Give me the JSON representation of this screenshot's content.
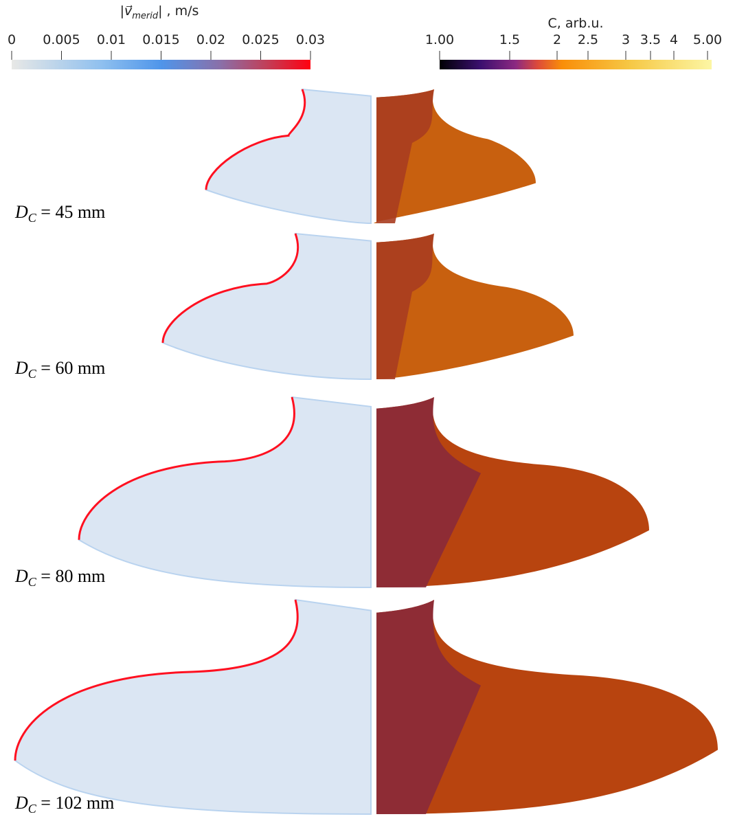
{
  "colorbars": [
    {
      "title": {
        "open": "|",
        "symbol": "v⃗",
        "subscript": "merid",
        "close": "| , m/s"
      },
      "ticks": [
        "0",
        "0.005",
        "0.01",
        "0.015",
        "0.02",
        "0.025",
        "0.03"
      ]
    },
    {
      "title": {
        "text": "C, arb.u."
      },
      "ticks": [
        "1.00",
        "1.5",
        "2",
        "2.5",
        "3",
        "3.5",
        "4",
        "5.00"
      ]
    }
  ],
  "panels": [
    {
      "symbol": "D",
      "subscript": "C",
      "rest": " = 45 mm"
    },
    {
      "symbol": "D",
      "subscript": "C",
      "rest": " = 60 mm"
    },
    {
      "symbol": "D",
      "subscript": "C",
      "rest": " = 80 mm"
    },
    {
      "symbol": "D",
      "subscript": "C",
      "rest": " = 102 mm"
    }
  ]
}
